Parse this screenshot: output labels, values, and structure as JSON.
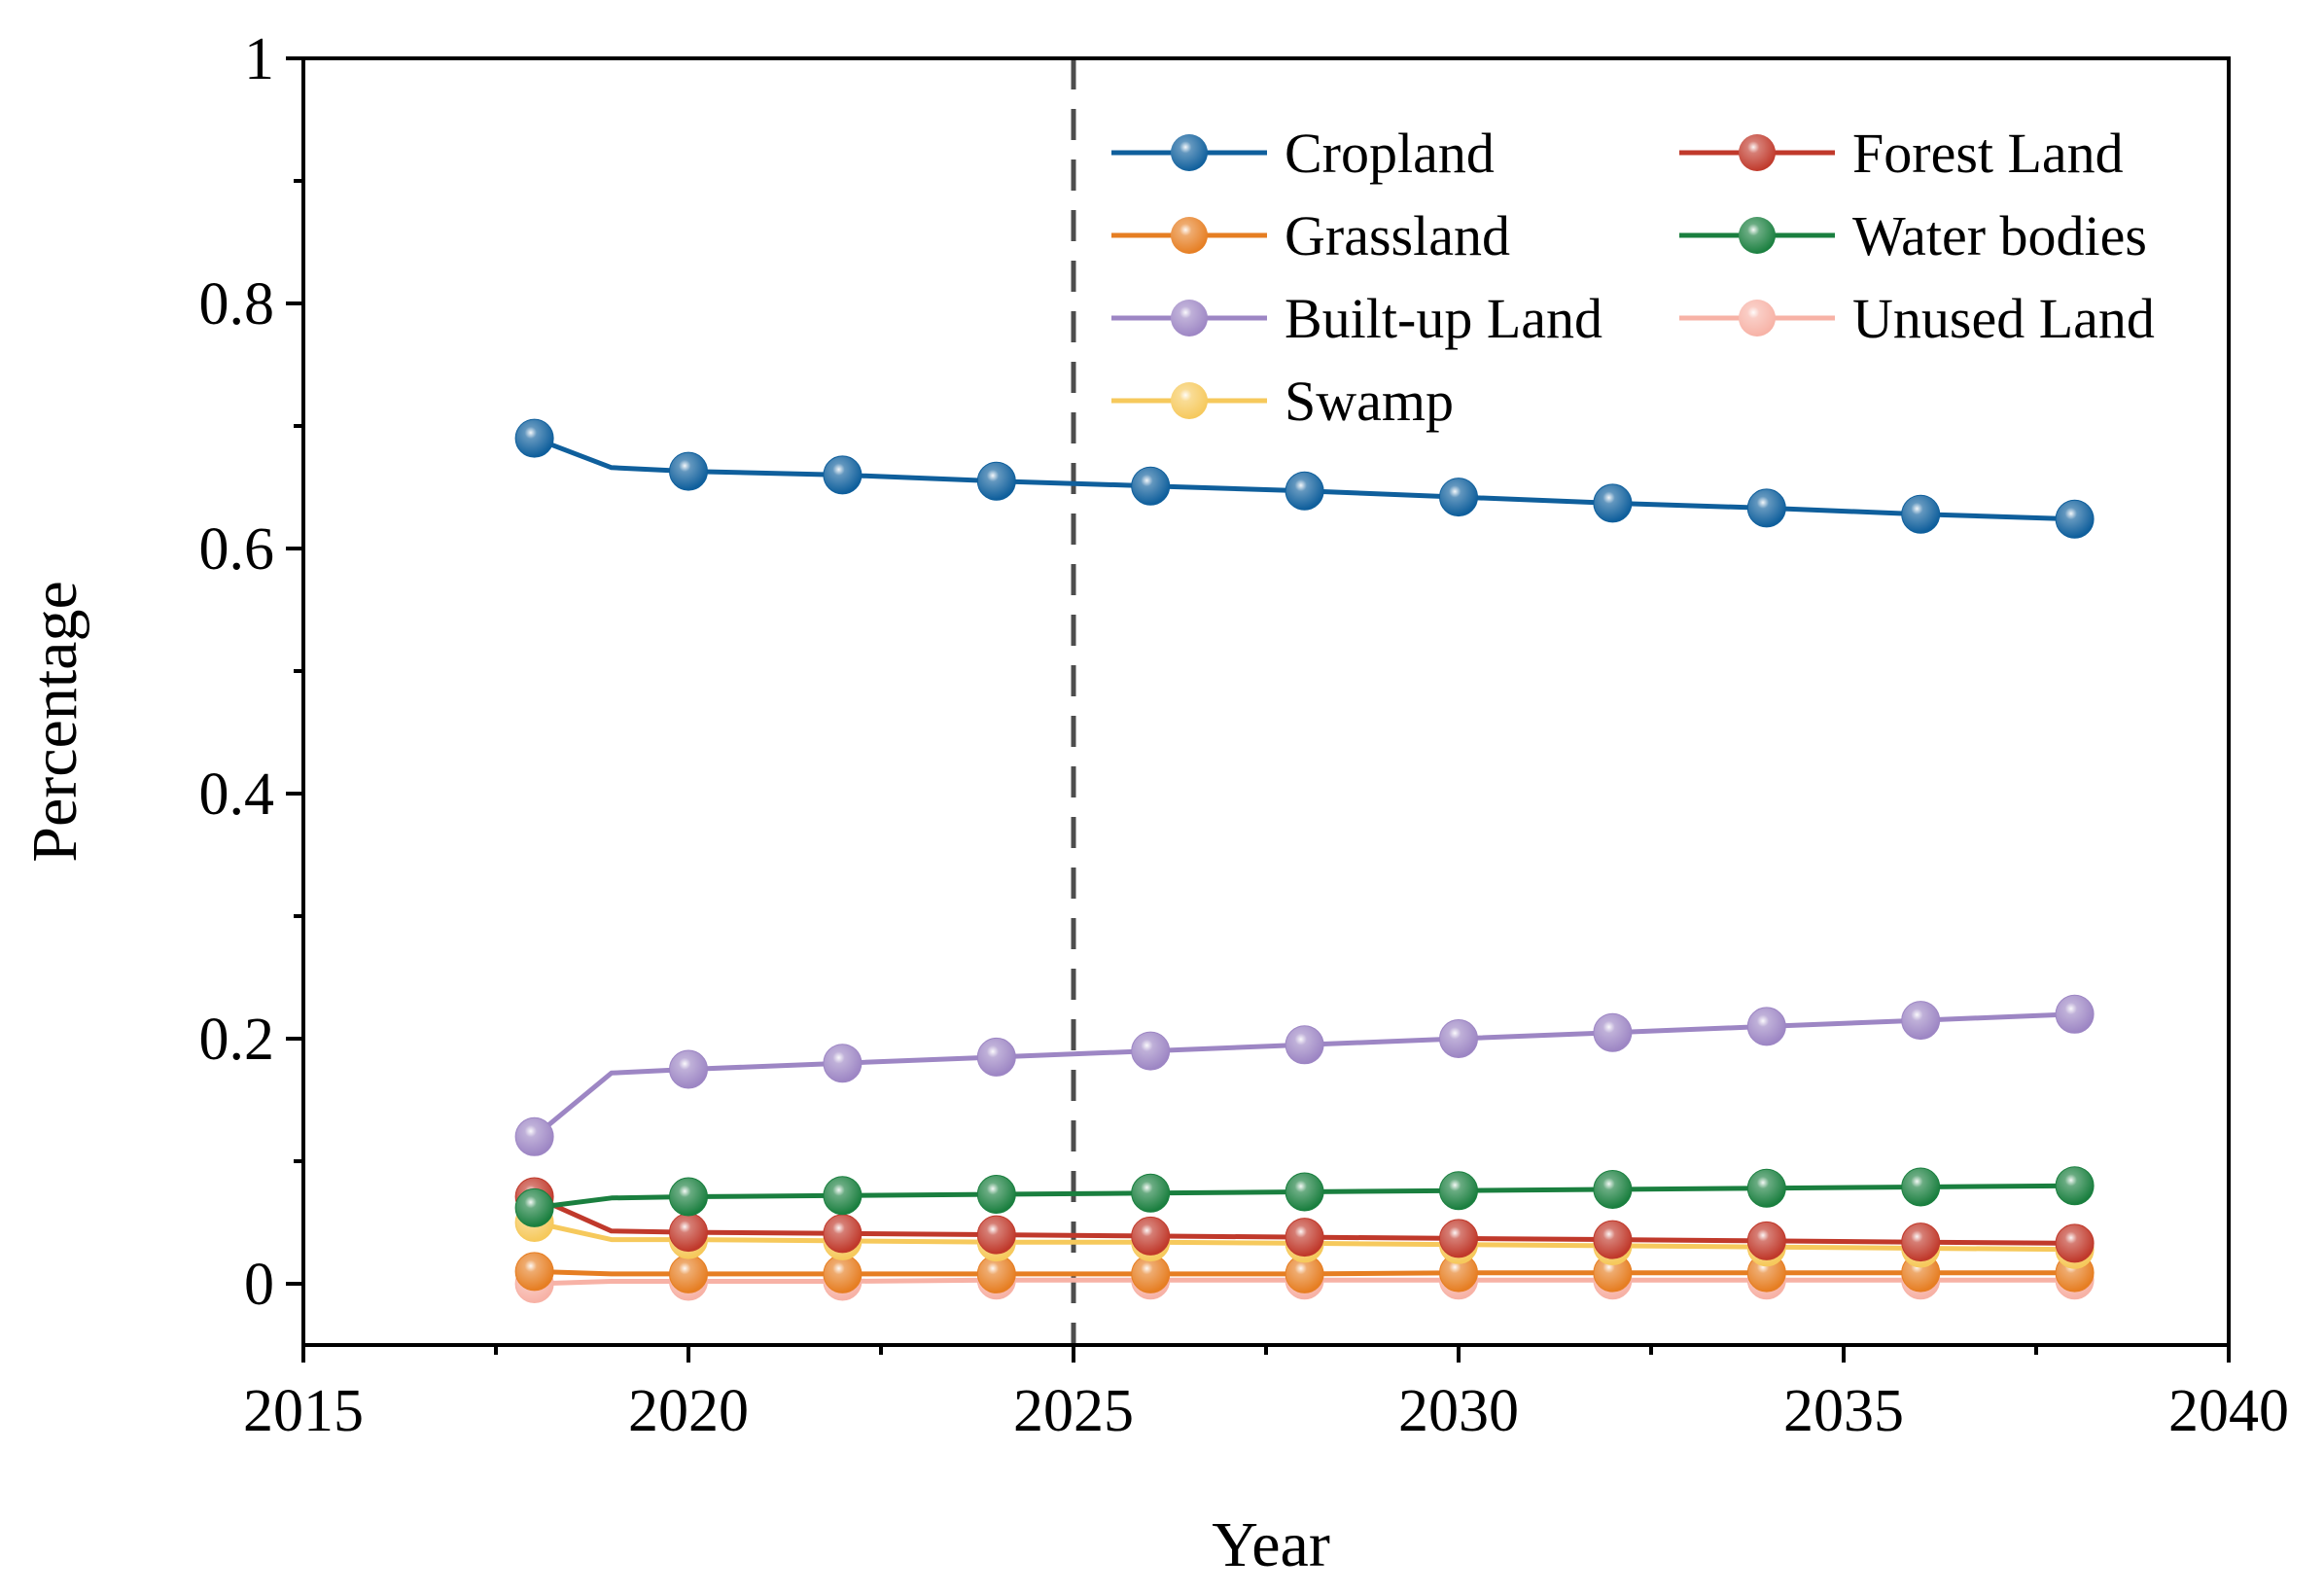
{
  "chart_data": {
    "type": "line",
    "title": "",
    "xlabel": "Year",
    "ylabel": "Percentage",
    "xlim": [
      2015,
      2040
    ],
    "ylim": [
      -0.05,
      1.0
    ],
    "xticks": [
      2015,
      2020,
      2025,
      2030,
      2035,
      2040
    ],
    "xtick_labels": [
      "2015",
      "2020",
      "2025",
      "2030",
      "2035",
      "2040"
    ],
    "yticks": [
      0,
      0.2,
      0.4,
      0.6,
      0.8,
      1.0
    ],
    "ytick_labels": [
      "0",
      "0.2",
      "0.4",
      "0.6",
      "0.8",
      "1"
    ],
    "grid": false,
    "legend_position": "top-right",
    "reference_line": {
      "x": 2025,
      "style": "dashed",
      "color": "#4d4d4d"
    },
    "x": [
      2018,
      2019,
      2020,
      2022,
      2024,
      2026,
      2028,
      2030,
      2032,
      2034,
      2036,
      2038
    ],
    "marker_years": [
      2018,
      2020,
      2022,
      2024,
      2026,
      2028,
      2030,
      2032,
      2034,
      2036,
      2038
    ],
    "series": [
      {
        "name": "Cropland",
        "color": "#0f5f9c",
        "values": [
          0.69,
          0.666,
          0.663,
          0.66,
          0.655,
          0.651,
          0.647,
          0.642,
          0.637,
          0.633,
          0.628,
          0.624
        ]
      },
      {
        "name": "Forest Land",
        "color": "#c0392b",
        "values": [
          0.071,
          0.043,
          0.042,
          0.041,
          0.04,
          0.039,
          0.038,
          0.037,
          0.036,
          0.035,
          0.034,
          0.033
        ]
      },
      {
        "name": "Grassland",
        "color": "#e67e22",
        "values": [
          0.01,
          0.008,
          0.008,
          0.008,
          0.008,
          0.008,
          0.008,
          0.009,
          0.009,
          0.009,
          0.009,
          0.009
        ]
      },
      {
        "name": "Water bodies",
        "color": "#1a7f3f",
        "values": [
          0.062,
          0.07,
          0.071,
          0.072,
          0.073,
          0.074,
          0.075,
          0.076,
          0.077,
          0.078,
          0.079,
          0.08
        ]
      },
      {
        "name": "Built-up Land",
        "color": "#9d86c4",
        "values": [
          0.12,
          0.172,
          0.175,
          0.18,
          0.185,
          0.19,
          0.195,
          0.2,
          0.205,
          0.21,
          0.215,
          0.22
        ]
      },
      {
        "name": "Unused Land",
        "color": "#f7b2a6",
        "values": [
          0.0,
          0.002,
          0.002,
          0.002,
          0.003,
          0.003,
          0.003,
          0.003,
          0.003,
          0.003,
          0.003,
          0.003
        ]
      },
      {
        "name": "Swamp",
        "color": "#f6c95c",
        "values": [
          0.05,
          0.036,
          0.036,
          0.035,
          0.034,
          0.034,
          0.033,
          0.032,
          0.031,
          0.03,
          0.029,
          0.028
        ]
      }
    ]
  }
}
